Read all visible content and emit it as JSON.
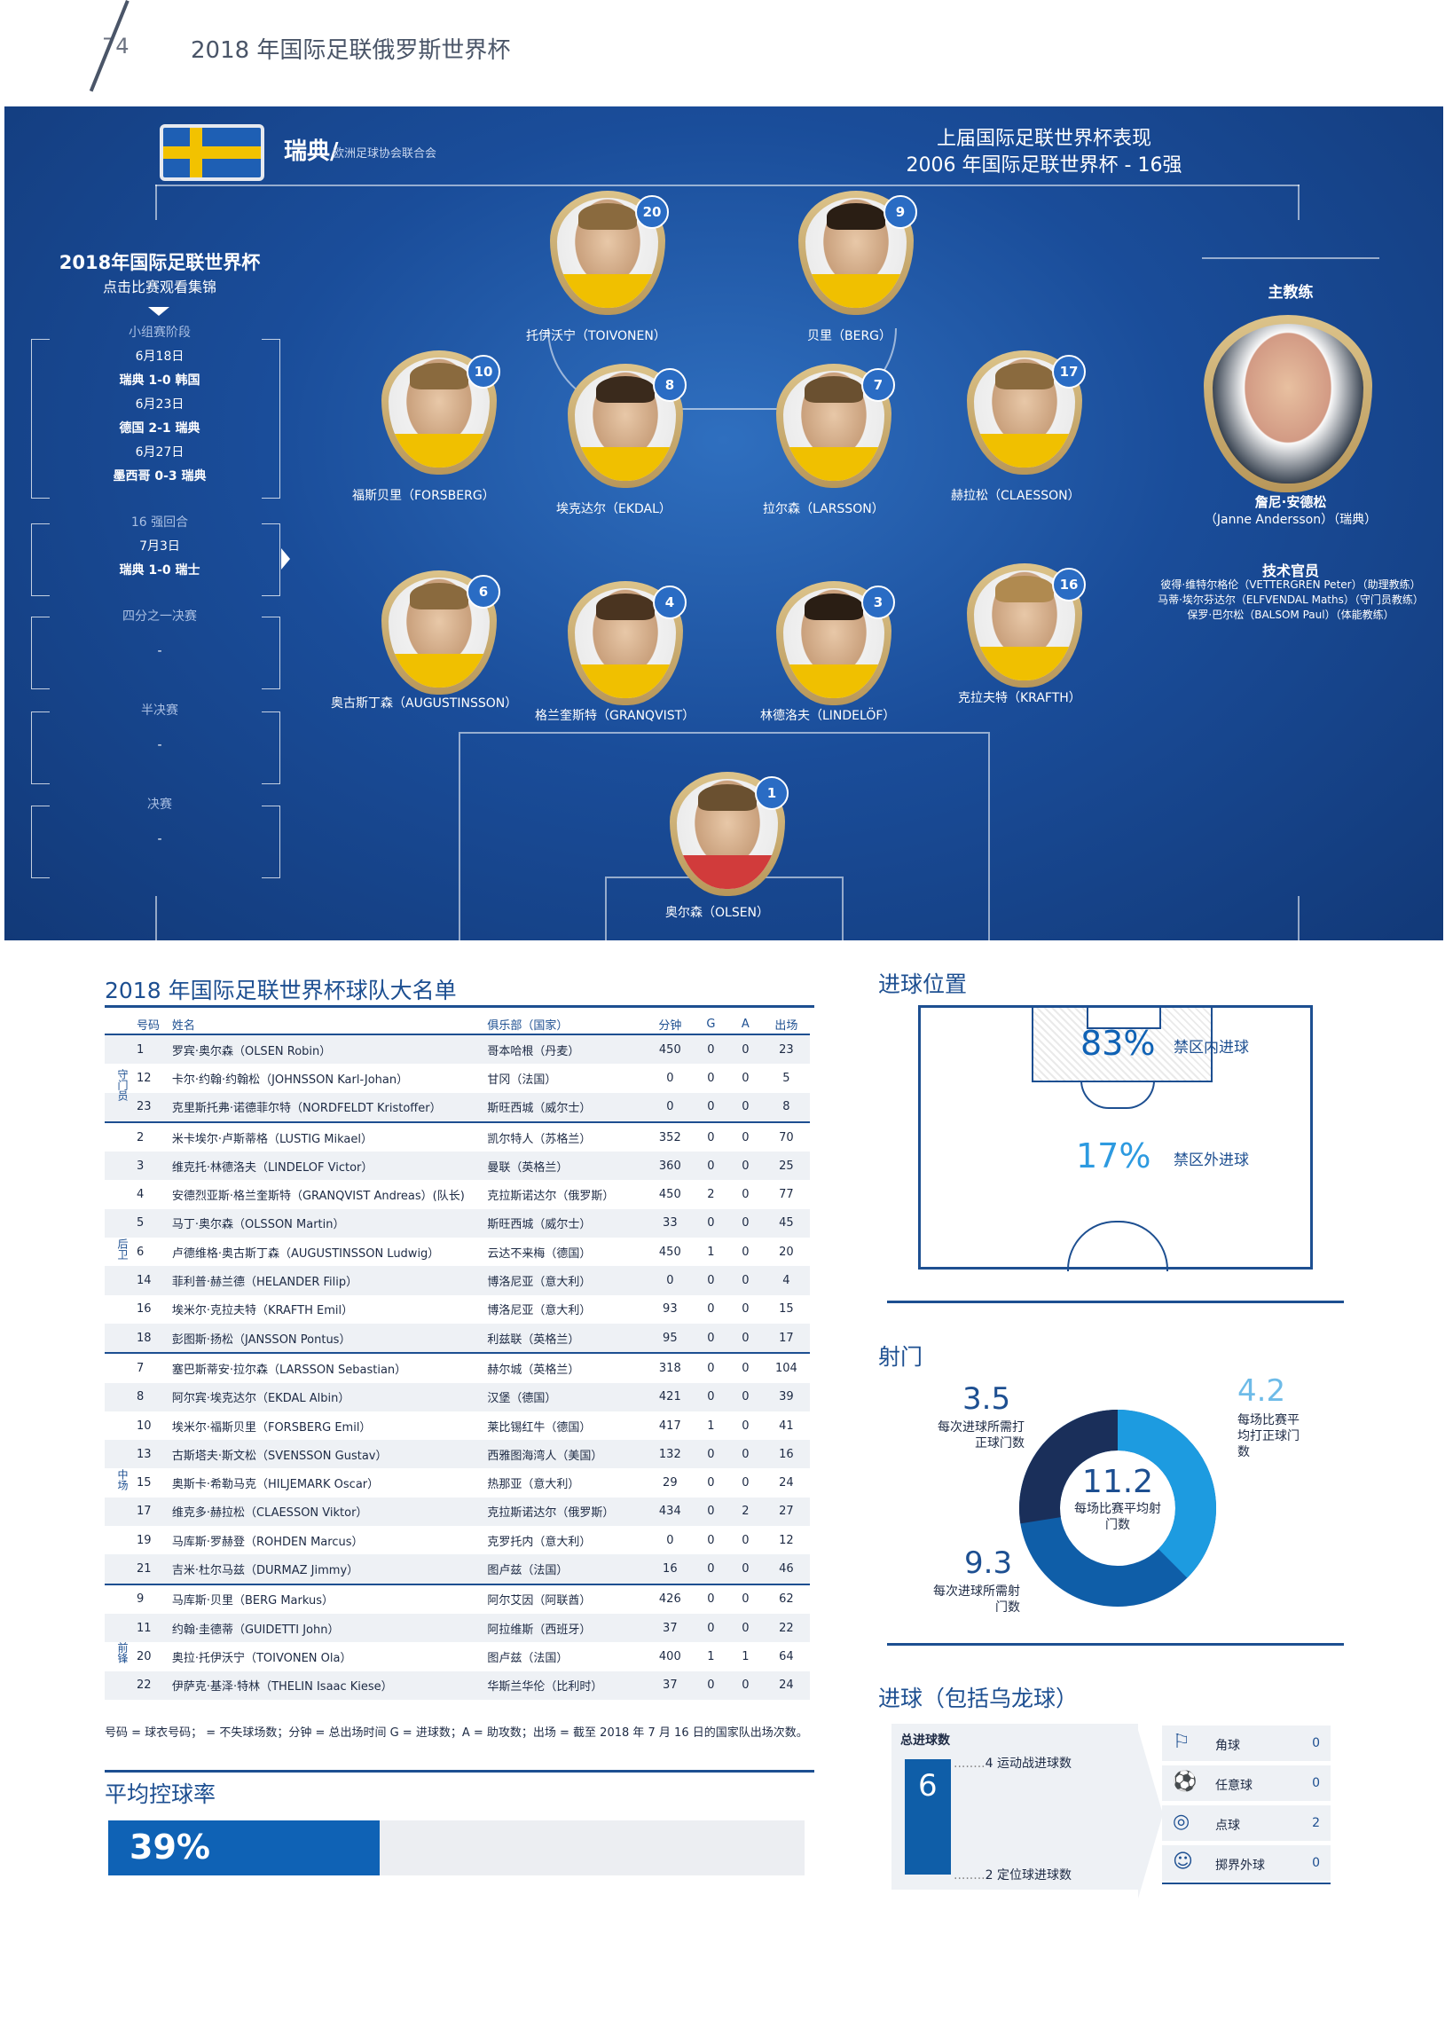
{
  "header": {
    "page_number": "74",
    "title": "2018 年国际足联俄罗斯世界杯"
  },
  "team": {
    "name": "瑞典/",
    "confederation": "欧洲足球协会联合会"
  },
  "previous": {
    "title": "上届国际足联世界杯表现",
    "result": "2006 年国际足联世界杯 - 16强"
  },
  "schedule": {
    "title": "2018年国际足联世界杯",
    "subtitle": "点击比赛观看集锦",
    "group_label": "小组赛阶段",
    "group_matches": [
      {
        "date": "6月18日",
        "result": "瑞典 1-0 韩国"
      },
      {
        "date": "6月23日",
        "result": "德国 2-1 瑞典"
      },
      {
        "date": "6月27日",
        "result": "墨西哥 0-3 瑞典"
      }
    ],
    "r16_label": "16 强回合",
    "r16_date": "7月3日",
    "r16_result": "瑞典 1-0 瑞士",
    "qf_label": "四分之一决赛",
    "qf_value": "-",
    "sf_label": "半决赛",
    "sf_value": "-",
    "final_label": "决赛",
    "final_value": "-"
  },
  "lineup": [
    {
      "number": "20",
      "name": "托伊沃宁（TOIVONEN）"
    },
    {
      "number": "9",
      "name": "贝里（BERG）"
    },
    {
      "number": "10",
      "name": "福斯贝里（FORSBERG）"
    },
    {
      "number": "8",
      "name": "埃克达尔（EKDAL）"
    },
    {
      "number": "7",
      "name": "拉尔森（LARSSON）"
    },
    {
      "number": "17",
      "name": "赫拉松（CLAESSON）"
    },
    {
      "number": "6",
      "name": "奥古斯丁森（AUGUSTINSSON）"
    },
    {
      "number": "4",
      "name": "格兰奎斯特（GRANQVIST）"
    },
    {
      "number": "3",
      "name": "林德洛夫（LINDELÖF）"
    },
    {
      "number": "16",
      "name": "克拉夫特（KRAFTH）"
    },
    {
      "number": "1",
      "name": "奥尔森（OLSEN）"
    }
  ],
  "coach": {
    "label": "主教练",
    "name": "詹尼·安德松",
    "name_en": "（Janne Andersson）（瑞典）"
  },
  "officials": {
    "label": "技术官员",
    "lines": [
      "彼得·维特尔格伦（VETTERGREN Peter）（助理教练）",
      "马蒂·埃尔芬达尔（ELFVENDAL Maths）（守门员教练）",
      "保罗·巴尔松（BALSOM Paul）（体能教练）"
    ]
  },
  "roster": {
    "title": "2018 年国际足联世界杯球队大名单",
    "headers": [
      "号码",
      "姓名",
      "俱乐部（国家）",
      "分钟",
      "G",
      "A",
      "出场"
    ],
    "groups": [
      {
        "label": "守门员",
        "rows": [
          [
            "1",
            "罗宾·奥尔森（OLSEN Robin）",
            "哥本哈根（丹麦）",
            "450",
            "0",
            "0",
            "23"
          ],
          [
            "12",
            "卡尔·约翰·约翰松（JOHNSSON Karl-Johan）",
            "甘冈（法国）",
            "0",
            "0",
            "0",
            "5"
          ],
          [
            "23",
            "克里斯托弗·诺德菲尔特（NORDFELDT Kristoffer）",
            "斯旺西城（威尔士）",
            "0",
            "0",
            "0",
            "8"
          ]
        ]
      },
      {
        "label": "后卫",
        "rows": [
          [
            "2",
            "米卡埃尔·卢斯蒂格（LUSTIG Mikael）",
            "凯尔特人（苏格兰）",
            "352",
            "0",
            "0",
            "70"
          ],
          [
            "3",
            "维克托·林德洛夫（LINDELOF Victor）",
            "曼联（英格兰）",
            "360",
            "0",
            "0",
            "25"
          ],
          [
            "4",
            "安德烈亚斯·格兰奎斯特（GRANQVIST Andreas）(队长)",
            "克拉斯诺达尔（俄罗斯）",
            "450",
            "2",
            "0",
            "77"
          ],
          [
            "5",
            "马丁·奥尔森（OLSSON Martin）",
            "斯旺西城（威尔士）",
            "33",
            "0",
            "0",
            "45"
          ],
          [
            "6",
            "卢德维格·奥古斯丁森（AUGUSTINSSON Ludwig）",
            "云达不来梅（德国）",
            "450",
            "1",
            "0",
            "20"
          ],
          [
            "14",
            "菲利普·赫兰德（HELANDER Filip）",
            "博洛尼亚（意大利）",
            "0",
            "0",
            "0",
            "4"
          ],
          [
            "16",
            "埃米尔·克拉夫特（KRAFTH Emil）",
            "博洛尼亚（意大利）",
            "93",
            "0",
            "0",
            "15"
          ],
          [
            "18",
            "彭图斯·扬松（JANSSON Pontus）",
            "利兹联（英格兰）",
            "95",
            "0",
            "0",
            "17"
          ]
        ]
      },
      {
        "label": "中场",
        "rows": [
          [
            "7",
            "塞巴斯蒂安·拉尔森（LARSSON Sebastian）",
            "赫尔城（英格兰）",
            "318",
            "0",
            "0",
            "104"
          ],
          [
            "8",
            "阿尔宾·埃克达尔（EKDAL Albin）",
            "汉堡（德国）",
            "421",
            "0",
            "0",
            "39"
          ],
          [
            "10",
            "埃米尔·福斯贝里（FORSBERG Emil）",
            "莱比锡红牛（德国）",
            "417",
            "1",
            "0",
            "41"
          ],
          [
            "13",
            "古斯塔夫·斯文松（SVENSSON Gustav）",
            "西雅图海湾人（美国）",
            "132",
            "0",
            "0",
            "16"
          ],
          [
            "15",
            "奥斯卡·希勒马克（HILJEMARK Oscar）",
            "热那亚（意大利）",
            "29",
            "0",
            "0",
            "24"
          ],
          [
            "17",
            "维克多·赫拉松（CLAESSON Viktor）",
            "克拉斯诺达尔（俄罗斯）",
            "434",
            "0",
            "2",
            "27"
          ],
          [
            "19",
            "马库斯·罗赫登（ROHDEN Marcus）",
            "克罗托内（意大利）",
            "0",
            "0",
            "0",
            "12"
          ],
          [
            "21",
            "吉米·杜尔马兹（DURMAZ Jimmy）",
            "图卢兹（法国）",
            "16",
            "0",
            "0",
            "46"
          ]
        ]
      },
      {
        "label": "前锋",
        "rows": [
          [
            "9",
            "马库斯·贝里（BERG Markus）",
            "阿尔艾因（阿联酋）",
            "426",
            "0",
            "0",
            "62"
          ],
          [
            "11",
            "约翰·圭德蒂（GUIDETTI John）",
            "阿拉维斯（西班牙）",
            "37",
            "0",
            "0",
            "22"
          ],
          [
            "20",
            "奥拉·托伊沃宁（TOIVONEN Ola）",
            "图卢兹（法国）",
            "400",
            "1",
            "1",
            "64"
          ],
          [
            "22",
            "伊萨克·基泽·特林（THELIN Isaac Kiese）",
            "华斯兰华伦（比利时）",
            "37",
            "0",
            "0",
            "24"
          ]
        ]
      }
    ],
    "note": "号码 = 球衣号码； = 不失球场数；分钟 = 总出场时间 G = 进球数；A = 助攻数；出场 = 截至 2018 年 7 月 16 日的国家队出场次数。"
  },
  "possession": {
    "title": "平均控球率",
    "value": "39%",
    "fraction": 0.39
  },
  "goal_location": {
    "title": "进球位置",
    "inside_pct": "83%",
    "inside_label": "禁区内进球",
    "outside_pct": "17%",
    "outside_label": "禁区外进球"
  },
  "shots": {
    "title": "射门",
    "on_target_per_goal": "3.5",
    "on_target_per_goal_label": "每次进球所需打正球门数",
    "on_target_per_match": "4.2",
    "on_target_per_match_label": "每场比赛平均打正球门数",
    "avg_shots": "11.2",
    "avg_shots_label": "每场比赛平均射门数",
    "shots_per_goal": "9.3",
    "shots_per_goal_label": "每次进球所需射门数",
    "on_target_fraction": 0.375
  },
  "goals": {
    "title": "进球（包括乌龙球）",
    "total_label": "总进球数",
    "total": "6",
    "open_play": "4 运动战进球数",
    "set_piece": "2 定位球进球数",
    "types": [
      {
        "label": "角球",
        "value": "0",
        "icon": "corner-icon"
      },
      {
        "label": "任意球",
        "value": "0",
        "icon": "free-kick-icon"
      },
      {
        "label": "点球",
        "value": "2",
        "icon": "penalty-icon"
      },
      {
        "label": "掷界外球",
        "value": "0",
        "icon": "throw-in-icon"
      }
    ]
  },
  "colors": {
    "primary": "#1d4f91",
    "accent": "#0f62b5",
    "light": "#2d9ae0",
    "flag_blue": "#1e5fb4",
    "flag_yellow": "#f2c200"
  }
}
